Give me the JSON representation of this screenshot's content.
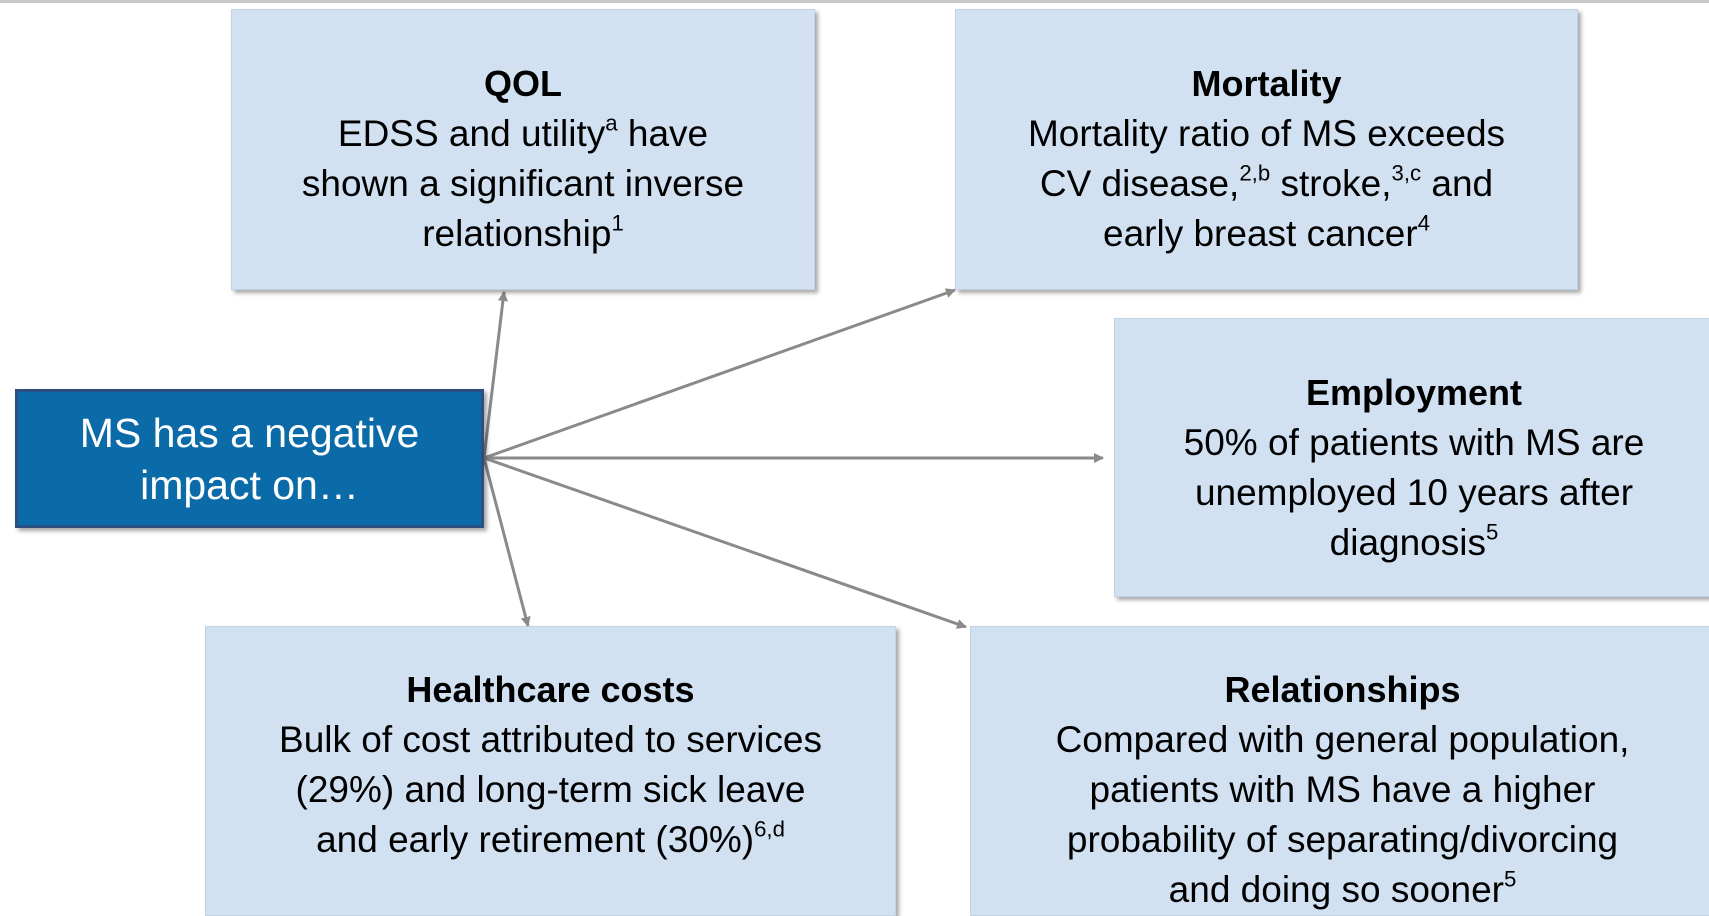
{
  "center": {
    "lines": [
      "MS has a negative",
      "impact on…"
    ]
  },
  "nodes": [
    {
      "title": "QOL",
      "lines": [
        [
          {
            "text": "EDSS and utility"
          },
          {
            "sup": "a"
          },
          {
            "text": " have"
          }
        ],
        [
          {
            "text": "shown a significant inverse"
          }
        ],
        [
          {
            "text": "relationship"
          },
          {
            "sup": "1"
          }
        ]
      ]
    },
    {
      "title": "Mortality",
      "lines": [
        [
          {
            "text": "Mortality ratio of MS exceeds"
          }
        ],
        [
          {
            "text": "CV disease,"
          },
          {
            "sup": "2,b"
          },
          {
            "text": " stroke,"
          },
          {
            "sup": "3,c"
          },
          {
            "text": " and"
          }
        ],
        [
          {
            "text": "early breast cancer"
          },
          {
            "sup": "4"
          }
        ]
      ]
    },
    {
      "title": "Employment",
      "lines": [
        [
          {
            "text": "50% of patients with MS are"
          }
        ],
        [
          {
            "text": "unemployed 10 years after"
          }
        ],
        [
          {
            "text": "diagnosis"
          },
          {
            "sup": "5"
          }
        ]
      ]
    },
    {
      "title": "Healthcare costs",
      "lines": [
        [
          {
            "text": "Bulk of cost attributed to services"
          }
        ],
        [
          {
            "text": "(29%) and long-term sick leave"
          }
        ],
        [
          {
            "text": "and early retirement (30%)"
          },
          {
            "sup": "6,d"
          }
        ]
      ]
    },
    {
      "title": "Relationships",
      "lines": [
        [
          {
            "text": "Compared with general population,"
          }
        ],
        [
          {
            "text": "patients with MS have a higher"
          }
        ],
        [
          {
            "text": "probability of separating/divorcing"
          }
        ],
        [
          {
            "text": "and doing so sooner"
          },
          {
            "sup": "5"
          }
        ]
      ]
    }
  ]
}
